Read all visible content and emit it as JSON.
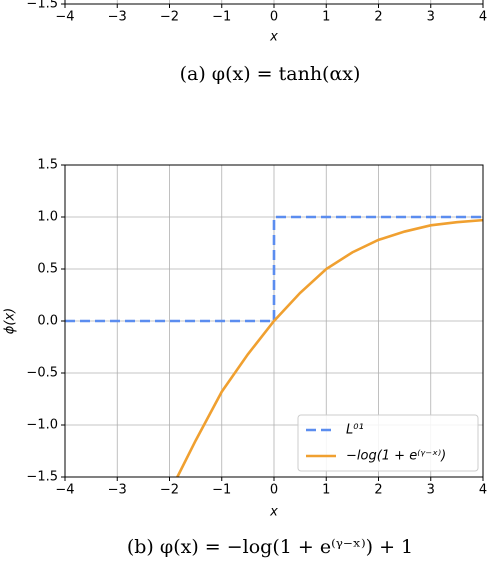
{
  "chart_data": [
    {
      "type": "axis",
      "caption": "(a) φ(x) = tanh(αx)",
      "xlabel": "x",
      "xlim": [
        -4,
        4
      ],
      "xticks": [
        {
          "value": -4,
          "label": "−4"
        },
        {
          "value": -3,
          "label": "−3"
        },
        {
          "value": -2,
          "label": "−2"
        },
        {
          "value": -1,
          "label": "−1"
        },
        0,
        1,
        2,
        3,
        4
      ],
      "yticks": [
        {
          "value": -1.5,
          "label": "−1.5"
        }
      ],
      "grid": true
    },
    {
      "type": "line",
      "caption": "(b) φ(x) = −log(1 + e⁽ᵞ⁻ˣ⁾) + 1",
      "xlabel": "x",
      "ylabel": "ϕ(x)",
      "xlim": [
        -4,
        4
      ],
      "ylim": [
        -1.5,
        1.5
      ],
      "xticks": [
        {
          "value": -4,
          "label": "−4"
        },
        {
          "value": -3,
          "label": "−3"
        },
        {
          "value": -2,
          "label": "−2"
        },
        {
          "value": -1,
          "label": "−1"
        },
        0,
        1,
        2,
        3,
        4
      ],
      "yticks": [
        {
          "value": -1.5,
          "label": "−1.5"
        },
        {
          "value": -1,
          "label": "−1.0"
        },
        {
          "value": -0.5,
          "label": "−0.5"
        },
        {
          "value": 0,
          "label": "0.0"
        },
        {
          "value": 0.5,
          "label": "0.5"
        },
        {
          "value": 1,
          "label": "1.0"
        },
        {
          "value": 1.5,
          "label": "1.5"
        }
      ],
      "grid": true,
      "legend": "lower right",
      "series": [
        {
          "name": "L⁰¹",
          "color": "#5b8def",
          "dashed": true,
          "x": [
            -4,
            0,
            0,
            4
          ],
          "values": [
            0,
            0,
            1,
            1
          ]
        },
        {
          "name": "−log(1 + e⁽ᵞ⁻ˣ⁾)",
          "color": "#f0a030",
          "dashed": false,
          "x": [
            -1.85,
            -1.5,
            -1,
            -0.5,
            0,
            0.5,
            1,
            1.5,
            2,
            2.5,
            3,
            3.5,
            4
          ],
          "values": [
            -1.5,
            -1.15,
            -0.68,
            -0.32,
            0,
            0.27,
            0.5,
            0.66,
            0.78,
            0.86,
            0.92,
            0.95,
            0.97
          ]
        }
      ]
    }
  ]
}
